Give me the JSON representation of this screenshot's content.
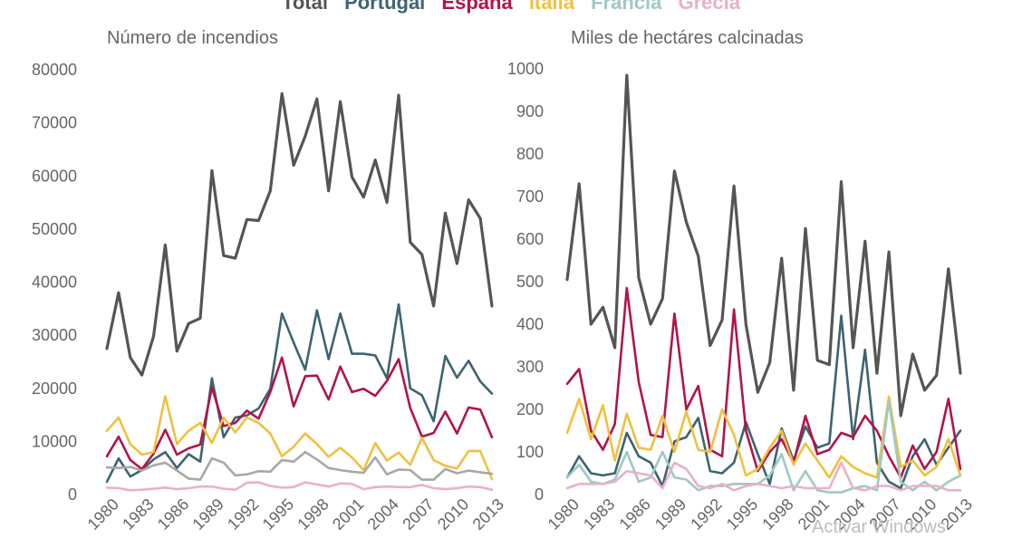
{
  "legend": {
    "items": [
      {
        "label": "Total",
        "color": "#555555"
      },
      {
        "label": "Portugal",
        "color": "#3d6470"
      },
      {
        "label": "España",
        "color": "#b0154a"
      },
      {
        "label": "Italia",
        "color": "#f0c040"
      },
      {
        "label": "Francia",
        "color": "#9ec9c4"
      },
      {
        "label": "Grecia",
        "color": "#eab0c8"
      }
    ]
  },
  "watermark": "Activar Windows",
  "chart_data": [
    {
      "type": "line",
      "title": "Número de incendios",
      "xlabel": "",
      "ylabel": "",
      "x": [
        1980,
        1981,
        1982,
        1983,
        1984,
        1985,
        1986,
        1987,
        1988,
        1989,
        1990,
        1991,
        1992,
        1993,
        1994,
        1995,
        1996,
        1997,
        1998,
        1999,
        2000,
        2001,
        2002,
        2003,
        2004,
        2005,
        2006,
        2007,
        2008,
        2009,
        2010,
        2011,
        2012,
        2013
      ],
      "x_tick_labels": [
        "1980",
        "1983",
        "1986",
        "1989",
        "1992",
        "1995",
        "1998",
        "2001",
        "2004",
        "2007",
        "2010",
        "2013"
      ],
      "ylim": [
        0,
        80000
      ],
      "y_ticks": [
        0,
        10000,
        20000,
        30000,
        40000,
        50000,
        60000,
        70000,
        80000
      ],
      "grid": false,
      "series": [
        {
          "name": "Total",
          "color": "#555555",
          "values": [
            27500,
            38000,
            25800,
            22500,
            29800,
            47000,
            27000,
            32200,
            33200,
            61000,
            45000,
            44500,
            51800,
            51600,
            57200,
            75500,
            62000,
            67500,
            74500,
            57200,
            74000,
            59800,
            56000,
            63000,
            55000,
            75200,
            47500,
            45200,
            35500,
            53000,
            43500,
            55500,
            52000,
            35500
          ]
        },
        {
          "name": "Portugal",
          "color": "#3d6470",
          "values": [
            2400,
            6800,
            3400,
            4600,
            6600,
            8000,
            5000,
            7600,
            6200,
            21900,
            10800,
            14500,
            14900,
            16200,
            19900,
            34100,
            28600,
            23500,
            34700,
            25500,
            34100,
            26500,
            26500,
            26200,
            21900,
            35800,
            20000,
            18700,
            13800,
            26100,
            22000,
            25200,
            21300,
            19000
          ]
        },
        {
          "name": "España",
          "color": "#b0154a",
          "values": [
            7200,
            10900,
            6500,
            4800,
            7700,
            12200,
            7500,
            8700,
            9400,
            20200,
            12900,
            13500,
            15800,
            14300,
            19300,
            25800,
            16600,
            22300,
            22400,
            17900,
            24100,
            19300,
            19900,
            18600,
            21400,
            25500,
            16300,
            10900,
            11600,
            15600,
            11500,
            16400,
            16000,
            10800
          ]
        },
        {
          "name": "Italia",
          "color": "#f0c040",
          "values": [
            12000,
            14500,
            9500,
            7500,
            8000,
            18500,
            9500,
            12000,
            13500,
            9700,
            14500,
            11700,
            14500,
            13500,
            11500,
            7200,
            9000,
            11500,
            9500,
            7100,
            8800,
            7000,
            4600,
            9700,
            6400,
            7900,
            5600,
            10700,
            6500,
            5400,
            4900,
            8200,
            8200,
            2900
          ]
        },
        {
          "name": "Francia",
          "color": "#a8a8a8",
          "values": [
            5100,
            5000,
            5200,
            4500,
            5500,
            6000,
            4500,
            3000,
            2800,
            6800,
            6000,
            3600,
            3800,
            4400,
            4300,
            6500,
            6200,
            8000,
            6600,
            5000,
            4600,
            4300,
            4100,
            7000,
            3800,
            4700,
            4600,
            2800,
            2800,
            4800,
            4000,
            4500,
            4200,
            3900
          ]
        },
        {
          "name": "Grecia",
          "color": "#eab0c8",
          "values": [
            1300,
            1200,
            800,
            900,
            1100,
            1300,
            1000,
            1200,
            1500,
            1500,
            1100,
            900,
            2200,
            2300,
            1600,
            1300,
            1400,
            2300,
            1900,
            1500,
            2100,
            2000,
            1000,
            1400,
            1500,
            1400,
            1400,
            1800,
            1200,
            1000,
            1200,
            1500,
            1400,
            900
          ]
        }
      ]
    },
    {
      "type": "line",
      "title": "Miles de hectáres calcinadas",
      "xlabel": "",
      "ylabel": "",
      "x": [
        1980,
        1981,
        1982,
        1983,
        1984,
        1985,
        1986,
        1987,
        1988,
        1989,
        1990,
        1991,
        1992,
        1993,
        1994,
        1995,
        1996,
        1997,
        1998,
        1999,
        2000,
        2001,
        2002,
        2003,
        2004,
        2005,
        2006,
        2007,
        2008,
        2009,
        2010,
        2011,
        2012,
        2013
      ],
      "x_tick_labels": [
        "1980",
        "1983",
        "1986",
        "1989",
        "1992",
        "1995",
        "1998",
        "2001",
        "2004",
        "2007",
        "2010",
        "2013"
      ],
      "ylim": [
        0,
        1000
      ],
      "y_ticks": [
        0,
        100,
        200,
        300,
        400,
        500,
        600,
        700,
        800,
        900,
        1000
      ],
      "grid": false,
      "series": [
        {
          "name": "Total",
          "color": "#555555",
          "values": [
            505,
            730,
            400,
            440,
            345,
            985,
            510,
            400,
            460,
            760,
            640,
            560,
            350,
            410,
            725,
            400,
            240,
            310,
            555,
            245,
            625,
            315,
            305,
            735,
            345,
            595,
            285,
            570,
            185,
            330,
            245,
            280,
            530,
            285
          ]
        },
        {
          "name": "Portugal",
          "color": "#3d6470",
          "values": [
            40,
            90,
            50,
            45,
            50,
            145,
            90,
            75,
            20,
            125,
            135,
            180,
            55,
            50,
            75,
            170,
            95,
            25,
            155,
            80,
            160,
            110,
            120,
            420,
            130,
            340,
            75,
            30,
            15,
            90,
            130,
            70,
            110,
            150
          ]
        },
        {
          "name": "España",
          "color": "#b0154a",
          "values": [
            260,
            295,
            150,
            105,
            165,
            485,
            265,
            140,
            135,
            425,
            200,
            255,
            105,
            90,
            435,
            150,
            55,
            100,
            130,
            75,
            185,
            95,
            105,
            145,
            135,
            185,
            150,
            90,
            40,
            115,
            60,
            100,
            225,
            60
          ]
        },
        {
          "name": "Italia",
          "color": "#f0c040",
          "values": [
            145,
            225,
            130,
            210,
            80,
            190,
            110,
            105,
            185,
            100,
            195,
            105,
            100,
            200,
            140,
            45,
            60,
            110,
            150,
            70,
            120,
            80,
            40,
            90,
            65,
            50,
            40,
            230,
            65,
            80,
            45,
            65,
            130,
            45
          ]
        },
        {
          "name": "Francia",
          "color": "#9ec9c4",
          "values": [
            40,
            70,
            30,
            25,
            35,
            100,
            30,
            40,
            100,
            40,
            35,
            10,
            20,
            20,
            25,
            25,
            25,
            45,
            95,
            10,
            55,
            10,
            5,
            5,
            15,
            20,
            10,
            220,
            30,
            10,
            30,
            10,
            30,
            45
          ]
        },
        {
          "name": "Grecia",
          "color": "#eab0c8",
          "values": [
            15,
            25,
            25,
            25,
            30,
            55,
            50,
            45,
            15,
            75,
            60,
            20,
            15,
            25,
            10,
            20,
            25,
            20,
            15,
            20,
            15,
            15,
            15,
            75,
            15,
            10,
            20,
            20,
            10,
            20,
            20,
            20,
            10,
            10
          ]
        }
      ]
    }
  ]
}
